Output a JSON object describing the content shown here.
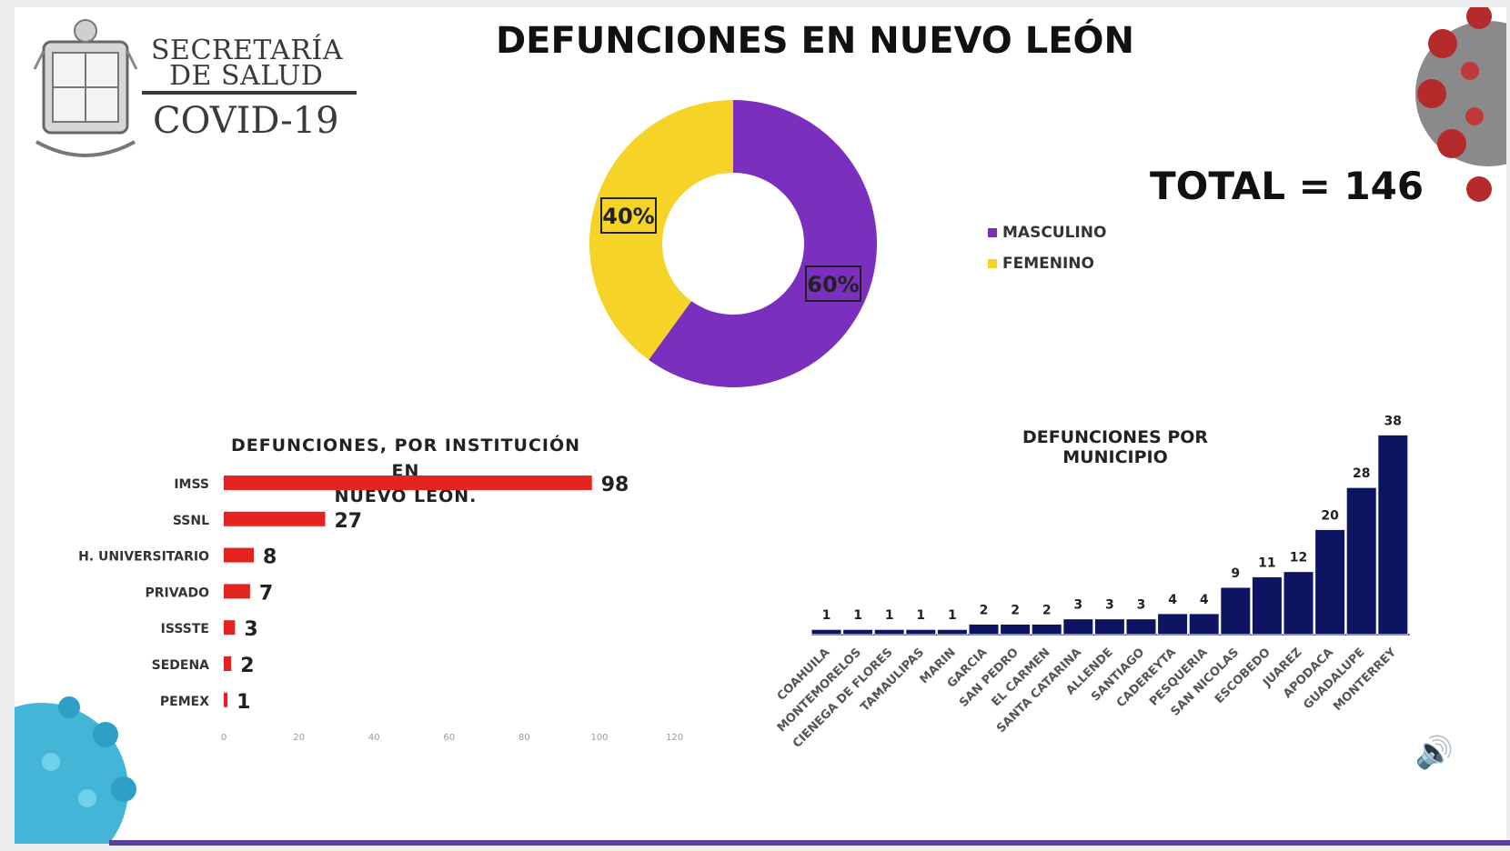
{
  "branding": {
    "line1": "SECRETARÍA",
    "line2": "DE SALUD",
    "line3": "COVID-19"
  },
  "title": "DEFUNCIONES EN NUEVO LEÓN",
  "total_label": "TOTAL = 146",
  "colors": {
    "masculino": "#7b2fbf",
    "femenino": "#f5d327",
    "institution_bar": "#e52421",
    "municipio_bar": "#0d1563",
    "bottom_bar": "#5a3fa0"
  },
  "icons": {
    "seal": "state-seal-icon",
    "virus": "virus-icon",
    "speaker": "speaker-icon"
  },
  "chart_data": [
    {
      "type": "pie",
      "title": "",
      "labels": [
        "MASCULINO",
        "FEMENINO"
      ],
      "values": [
        60,
        40
      ],
      "data_labels": [
        "60%",
        "40%"
      ],
      "colors": [
        "#7b2fbf",
        "#f5d327"
      ],
      "donut": true,
      "legend": "right"
    },
    {
      "type": "bar",
      "orientation": "horizontal",
      "title_lines": [
        "DEFUNCIONES, POR INSTITUCIÓN EN",
        "NUEVO LEÓN."
      ],
      "categories": [
        "IMSS",
        "SSNL",
        "H. UNIVERSITARIO",
        "PRIVADO",
        "ISSSTE",
        "SEDENA",
        "PEMEX"
      ],
      "values": [
        98,
        27,
        8,
        7,
        3,
        2,
        1
      ],
      "xlim": [
        0,
        120
      ],
      "xticks": [
        "0",
        "20",
        "40",
        "60",
        "80",
        "100",
        "120"
      ],
      "grid": false
    },
    {
      "type": "bar",
      "title": "DEFUNCIONES POR MUNICIPIO",
      "categories": [
        "COAHUILA",
        "MONTEMORELOS",
        "CIENEGA DE FLORES",
        "TAMAULIPAS",
        "MARIN",
        "GARCIA",
        "SAN PEDRO",
        "EL CARMEN",
        "SANTA CATARINA",
        "ALLENDE",
        "SANTIAGO",
        "CADEREYTA",
        "PESQUERIA",
        "SAN NICOLAS",
        "ESCOBEDO",
        "JUAREZ",
        "APODACA",
        "GUADALUPE",
        "MONTERREY"
      ],
      "values": [
        1,
        1,
        1,
        1,
        1,
        2,
        2,
        2,
        3,
        3,
        3,
        4,
        4,
        9,
        11,
        12,
        20,
        28,
        38
      ],
      "ylim": [
        0,
        38
      ],
      "grid": false
    }
  ]
}
